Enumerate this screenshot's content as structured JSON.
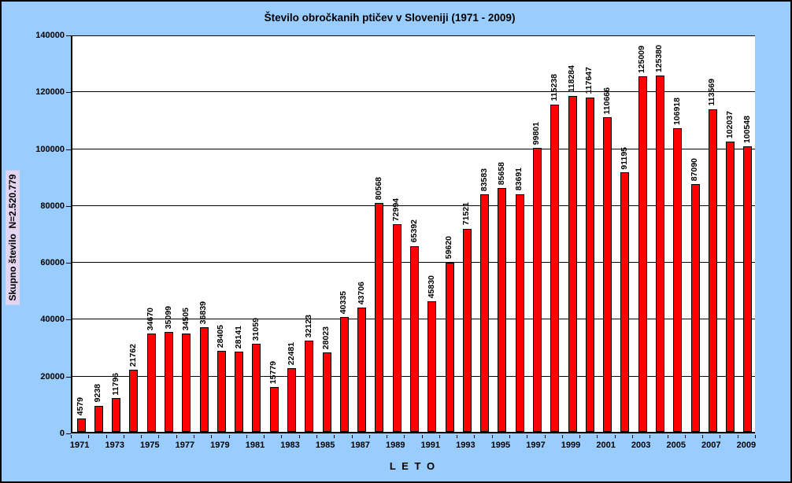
{
  "chart_data": {
    "type": "bar",
    "title": "Število obročkanih ptičev v Sloveniji (1971 - 2009)",
    "xlabel": "L E T O",
    "ylabel": "Skupno število  N=2.520.779",
    "total_label": "N=2.520.779",
    "categories": [
      1971,
      1972,
      1973,
      1974,
      1975,
      1976,
      1977,
      1978,
      1979,
      1980,
      1981,
      1982,
      1983,
      1984,
      1985,
      1986,
      1987,
      1988,
      1989,
      1990,
      1991,
      1992,
      1993,
      1994,
      1995,
      1996,
      1997,
      1998,
      1999,
      2000,
      2001,
      2002,
      2003,
      2004,
      2005,
      2006,
      2007,
      2008,
      2009
    ],
    "values": [
      4579,
      9238,
      11796,
      21762,
      34670,
      35099,
      34505,
      36839,
      28405,
      28141,
      31059,
      15779,
      22481,
      32123,
      28023,
      40335,
      43706,
      80568,
      72994,
      65392,
      45830,
      59620,
      71521,
      83583,
      85658,
      83691,
      99801,
      115238,
      118284,
      117647,
      110666,
      91195,
      125009,
      125380,
      106918,
      87090,
      113569,
      102037,
      100548
    ],
    "ylim": [
      0,
      140000
    ],
    "yticks": [
      0,
      20000,
      40000,
      60000,
      80000,
      100000,
      120000,
      140000
    ],
    "xtick_labeled_years": [
      1971,
      1973,
      1975,
      1977,
      1979,
      1981,
      1983,
      1985,
      1987,
      1989,
      1991,
      1993,
      1995,
      1997,
      1999,
      2001,
      2003,
      2005,
      2007,
      2009
    ],
    "grid": true,
    "legend": false,
    "data_labels": true,
    "colors": {
      "bar_fill": "#FF0000",
      "bar_border": "#000000",
      "chart_background": "#99CCFF",
      "plot_background": "#FFFFFF",
      "gridline": "#000000",
      "text": "#000000",
      "ylabel_background": "#E3D4EF",
      "outer_border": "#000000"
    }
  }
}
